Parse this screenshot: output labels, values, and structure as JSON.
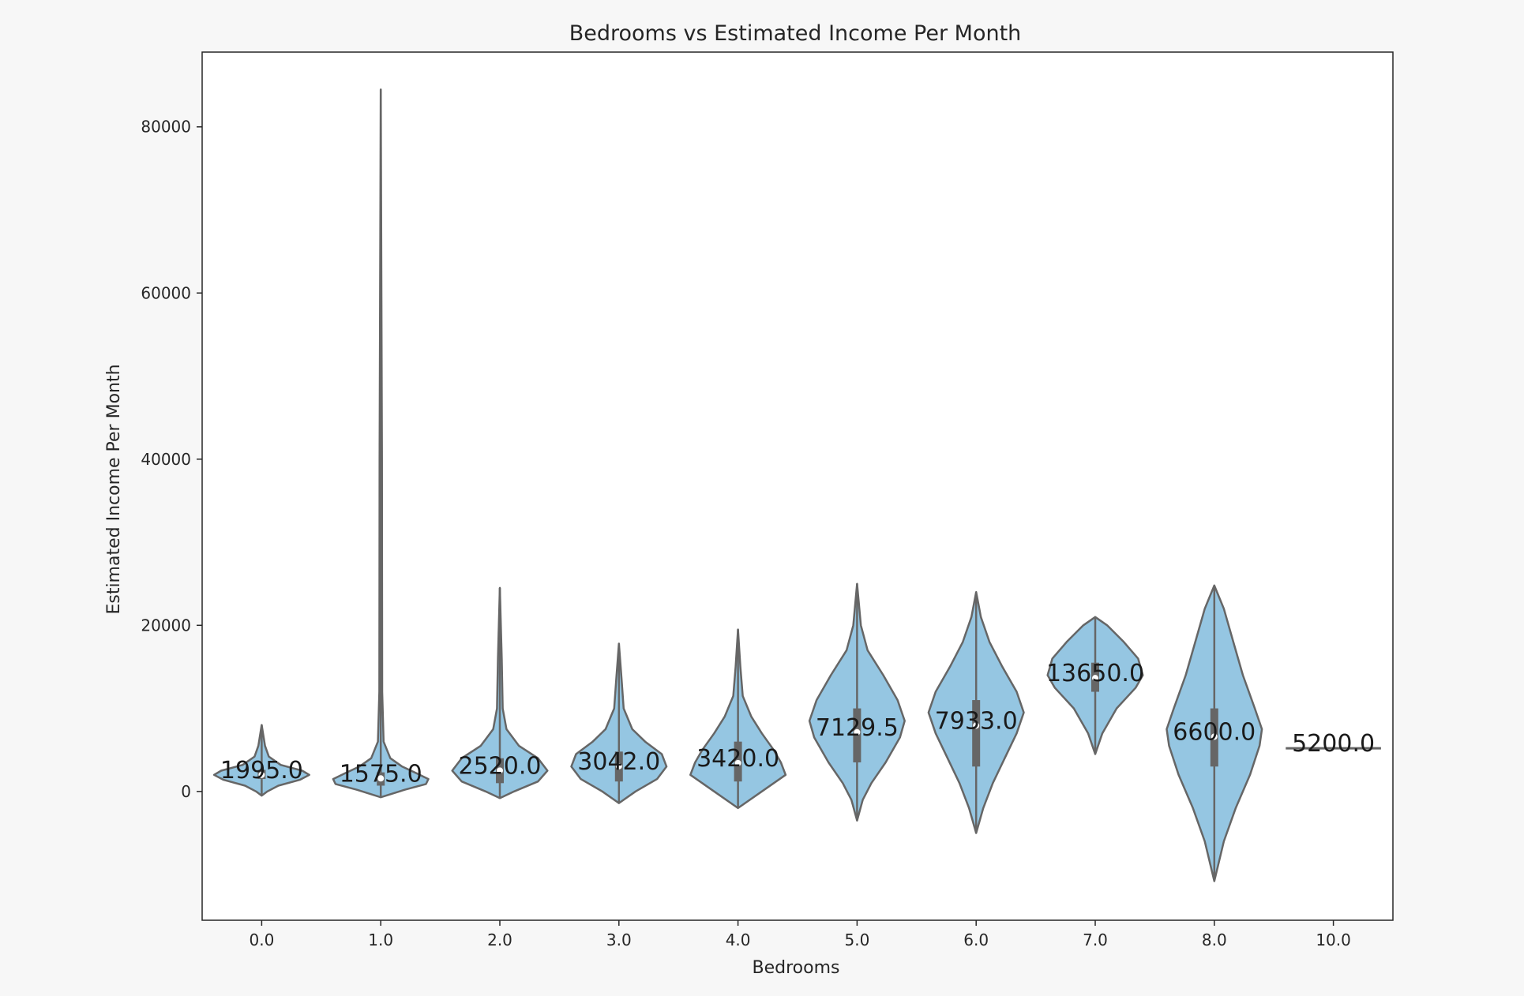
{
  "chart_data": {
    "type": "violin",
    "title": "Bedrooms vs Estimated Income Per Month",
    "xlabel": "Bedrooms",
    "ylabel": "Estimated Income Per Month",
    "categories": [
      "0.0",
      "1.0",
      "2.0",
      "3.0",
      "4.0",
      "5.0",
      "6.0",
      "7.0",
      "8.0",
      "10.0"
    ],
    "medians": [
      1995.0,
      1575.0,
      2520.0,
      3042.0,
      3420.0,
      7129.5,
      7933.0,
      13650.0,
      6600.0,
      5200.0
    ],
    "median_labels": [
      "1995.0",
      "1575.0",
      "2520.0",
      "3042.0",
      "3420.0",
      "7129.5",
      "7933.0",
      "13650.0",
      "6600.0",
      "5200.0"
    ],
    "violins": [
      {
        "category": "0.0",
        "min": -500,
        "max": 8000,
        "q1": 1500,
        "q3": 2600,
        "profile": [
          [
            -500,
            0.0
          ],
          [
            0,
            0.12
          ],
          [
            700,
            0.35
          ],
          [
            1400,
            0.8
          ],
          [
            2000,
            1.0
          ],
          [
            2500,
            0.85
          ],
          [
            3200,
            0.4
          ],
          [
            4200,
            0.15
          ],
          [
            5500,
            0.07
          ],
          [
            8000,
            0.0
          ]
        ]
      },
      {
        "category": "1.0",
        "min": -700,
        "max": 84500,
        "q1": 700,
        "q3": 2300,
        "profile": [
          [
            -700,
            0.0
          ],
          [
            200,
            0.5
          ],
          [
            900,
            0.95
          ],
          [
            1500,
            1.0
          ],
          [
            2200,
            0.75
          ],
          [
            3000,
            0.45
          ],
          [
            4000,
            0.2
          ],
          [
            6000,
            0.06
          ],
          [
            12000,
            0.03
          ],
          [
            40000,
            0.025
          ],
          [
            84500,
            0.0
          ]
        ]
      },
      {
        "category": "2.0",
        "min": -800,
        "max": 24500,
        "q1": 1000,
        "q3": 4000,
        "profile": [
          [
            -800,
            0.0
          ],
          [
            0,
            0.3
          ],
          [
            1200,
            0.8
          ],
          [
            2500,
            1.0
          ],
          [
            4000,
            0.8
          ],
          [
            5500,
            0.4
          ],
          [
            7500,
            0.14
          ],
          [
            10000,
            0.06
          ],
          [
            16000,
            0.04
          ],
          [
            24500,
            0.0
          ]
        ]
      },
      {
        "category": "3.0",
        "min": -1400,
        "max": 17800,
        "q1": 1200,
        "q3": 4800,
        "profile": [
          [
            -1400,
            0.0
          ],
          [
            0,
            0.35
          ],
          [
            1500,
            0.8
          ],
          [
            3000,
            1.0
          ],
          [
            4500,
            0.9
          ],
          [
            6000,
            0.55
          ],
          [
            7500,
            0.28
          ],
          [
            10000,
            0.1
          ],
          [
            14000,
            0.05
          ],
          [
            17800,
            0.0
          ]
        ]
      },
      {
        "category": "4.0",
        "min": -2000,
        "max": 19500,
        "q1": 1200,
        "q3": 6000,
        "profile": [
          [
            -2000,
            0.0
          ],
          [
            0,
            0.5
          ],
          [
            2000,
            1.0
          ],
          [
            3500,
            0.9
          ],
          [
            5000,
            0.75
          ],
          [
            7000,
            0.5
          ],
          [
            9000,
            0.28
          ],
          [
            11500,
            0.1
          ],
          [
            15000,
            0.05
          ],
          [
            19500,
            0.0
          ]
        ]
      },
      {
        "category": "5.0",
        "min": -3500,
        "max": 25000,
        "q1": 3500,
        "q3": 10000,
        "profile": [
          [
            -3500,
            0.0
          ],
          [
            -1000,
            0.12
          ],
          [
            1000,
            0.3
          ],
          [
            3500,
            0.6
          ],
          [
            6500,
            0.9
          ],
          [
            8500,
            1.0
          ],
          [
            11000,
            0.85
          ],
          [
            14000,
            0.55
          ],
          [
            17000,
            0.22
          ],
          [
            20000,
            0.08
          ],
          [
            25000,
            0.0
          ]
        ]
      },
      {
        "category": "6.0",
        "min": -5000,
        "max": 24000,
        "q1": 3000,
        "q3": 11000,
        "profile": [
          [
            -5000,
            0.0
          ],
          [
            -2000,
            0.15
          ],
          [
            1000,
            0.35
          ],
          [
            4000,
            0.6
          ],
          [
            7000,
            0.85
          ],
          [
            9500,
            1.0
          ],
          [
            12000,
            0.85
          ],
          [
            15000,
            0.55
          ],
          [
            18000,
            0.28
          ],
          [
            21000,
            0.1
          ],
          [
            24000,
            0.0
          ]
        ]
      },
      {
        "category": "7.0",
        "min": 4500,
        "max": 21000,
        "q1": 12000,
        "q3": 15500,
        "profile": [
          [
            4500,
            0.0
          ],
          [
            7000,
            0.15
          ],
          [
            10000,
            0.45
          ],
          [
            12500,
            0.85
          ],
          [
            14000,
            1.0
          ],
          [
            16000,
            0.9
          ],
          [
            18000,
            0.6
          ],
          [
            20000,
            0.25
          ],
          [
            21000,
            0.0
          ]
        ]
      },
      {
        "category": "8.0",
        "min": -10800,
        "max": 24800,
        "q1": 3000,
        "q3": 10000,
        "profile": [
          [
            -10800,
            0.0
          ],
          [
            -6000,
            0.2
          ],
          [
            -2000,
            0.45
          ],
          [
            2000,
            0.75
          ],
          [
            5500,
            0.95
          ],
          [
            7500,
            1.0
          ],
          [
            10000,
            0.85
          ],
          [
            14000,
            0.6
          ],
          [
            18000,
            0.4
          ],
          [
            22000,
            0.2
          ],
          [
            24800,
            0.0
          ]
        ]
      },
      {
        "category": "10.0",
        "min": 5200,
        "max": 5200,
        "q1": 5200,
        "q3": 5200,
        "profile": []
      }
    ],
    "y_ticks": [
      0,
      20000,
      40000,
      60000,
      80000
    ],
    "y_tick_labels": [
      "0",
      "20000",
      "40000",
      "60000",
      "80000"
    ],
    "ylim": [
      -15500,
      89000
    ],
    "grid": false,
    "legend": "none",
    "colors": {
      "violin_fill": "#95c6e2",
      "violin_edge": "#666666",
      "box": "#666666",
      "axes_edge": "#262626",
      "background": "#ffffff"
    }
  }
}
